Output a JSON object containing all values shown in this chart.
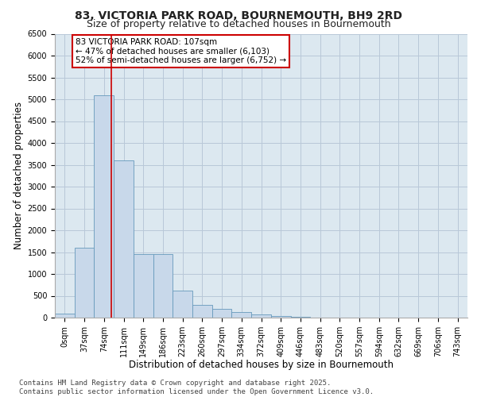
{
  "title_line1": "83, VICTORIA PARK ROAD, BOURNEMOUTH, BH9 2RD",
  "title_line2": "Size of property relative to detached houses in Bournemouth",
  "xlabel": "Distribution of detached houses by size in Bournemouth",
  "ylabel": "Number of detached properties",
  "bin_labels": [
    "0sqm",
    "37sqm",
    "74sqm",
    "111sqm",
    "149sqm",
    "186sqm",
    "223sqm",
    "260sqm",
    "297sqm",
    "334sqm",
    "372sqm",
    "409sqm",
    "446sqm",
    "483sqm",
    "520sqm",
    "557sqm",
    "594sqm",
    "632sqm",
    "669sqm",
    "706sqm",
    "743sqm"
  ],
  "bar_values": [
    100,
    1600,
    5100,
    3600,
    1450,
    1450,
    620,
    300,
    200,
    120,
    80,
    40,
    15,
    8,
    4,
    2,
    1,
    1,
    0,
    0,
    0
  ],
  "bar_color": "#c8d8ea",
  "bar_edge_color": "#6699bb",
  "vline_color": "#cc0000",
  "annotation_text": "83 VICTORIA PARK ROAD: 107sqm\n← 47% of detached houses are smaller (6,103)\n52% of semi-detached houses are larger (6,752) →",
  "annotation_box_color": "#cc0000",
  "ylim": [
    0,
    6500
  ],
  "yticks": [
    0,
    500,
    1000,
    1500,
    2000,
    2500,
    3000,
    3500,
    4000,
    4500,
    5000,
    5500,
    6000,
    6500
  ],
  "grid_color": "#b8c8d8",
  "background_color": "#dce8f0",
  "footer_line1": "Contains HM Land Registry data © Crown copyright and database right 2025.",
  "footer_line2": "Contains public sector information licensed under the Open Government Licence v3.0.",
  "title_fontsize": 10,
  "subtitle_fontsize": 9,
  "axis_label_fontsize": 8.5,
  "tick_fontsize": 7,
  "footer_fontsize": 6.5,
  "annot_fontsize": 7.5
}
